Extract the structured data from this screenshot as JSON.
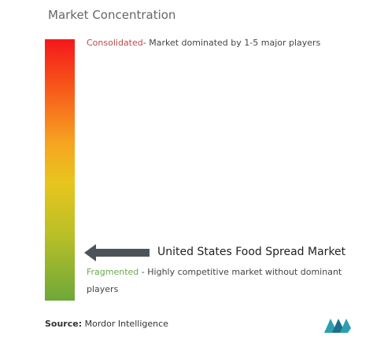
{
  "title": "Market Concentration",
  "scale": {
    "top": {
      "label": "Consolidated",
      "description": "- Market dominated by 1-5 major players"
    },
    "bottom": {
      "label": "Fragmented",
      "description": "- Highly competitive market without dominant players"
    }
  },
  "marker": {
    "label": "United States Food Spread Market"
  },
  "source": {
    "label": "Source:",
    "text": "Mordor Intelligence"
  }
}
